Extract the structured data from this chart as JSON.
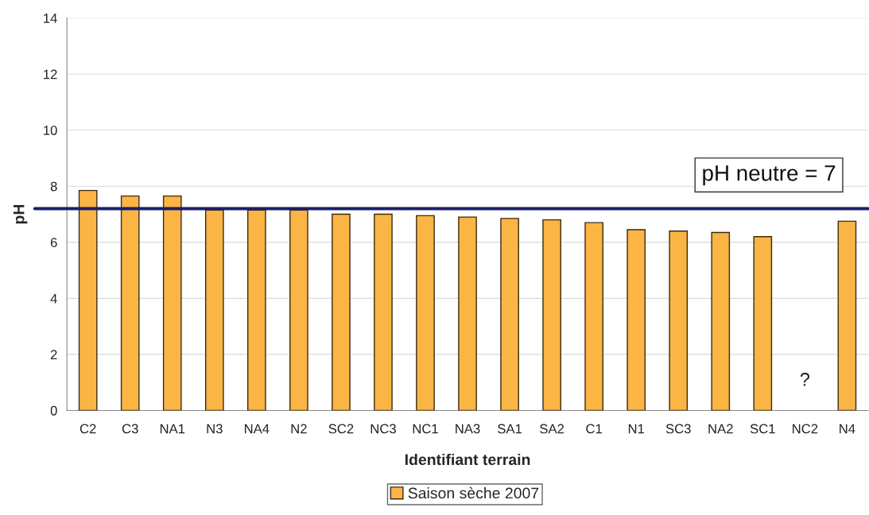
{
  "chart_data": {
    "type": "bar",
    "categories": [
      "C2",
      "C3",
      "NA1",
      "N3",
      "NA4",
      "N2",
      "SC2",
      "NC3",
      "NC1",
      "NA3",
      "SA1",
      "SA2",
      "C1",
      "N1",
      "SC3",
      "NA2",
      "SC1",
      "NC2",
      "N4"
    ],
    "series": [
      {
        "name": "Saison sèche 2007",
        "color": "#fbb545",
        "values": [
          7.85,
          7.65,
          7.65,
          7.15,
          7.15,
          7.15,
          7.0,
          7.0,
          6.95,
          6.9,
          6.85,
          6.8,
          6.7,
          6.45,
          6.4,
          6.35,
          6.2,
          null,
          6.75
        ]
      }
    ],
    "xlabel": "Identifiant terrain",
    "ylabel": "pH",
    "ylim": [
      0,
      14
    ],
    "yticks": [
      0,
      2,
      4,
      6,
      8,
      10,
      12,
      14
    ],
    "grid": "y",
    "legend": "bottom",
    "ref_lines": [
      {
        "axis": "y",
        "value": 7.2,
        "label": "pH neutre = 7",
        "color": "#1b1f6b"
      }
    ],
    "annotations": [
      "?"
    ]
  }
}
